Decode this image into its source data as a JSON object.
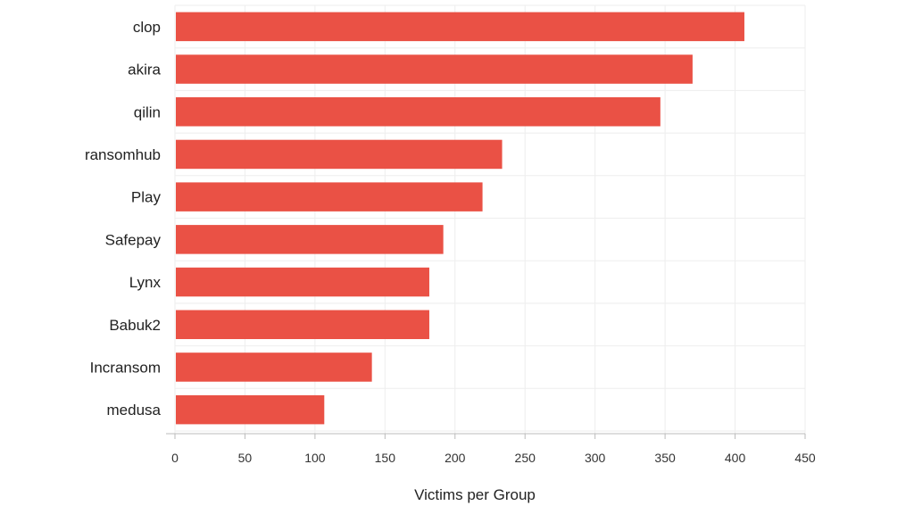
{
  "chart_data": {
    "type": "bar",
    "orientation": "horizontal",
    "categories": [
      "clop",
      "akira",
      "qilin",
      "ransomhub",
      "Play",
      "Safepay",
      "Lynx",
      "Babuk2",
      "Incransom",
      "medusa"
    ],
    "values": [
      406,
      369,
      346,
      233,
      219,
      191,
      181,
      181,
      140,
      106
    ],
    "xlabel": "Victims per Group",
    "ylabel": "",
    "xlim": [
      0,
      450
    ],
    "xticks": [
      0,
      50,
      100,
      150,
      200,
      250,
      300,
      350,
      400,
      450
    ],
    "xtick_labels": [
      "0",
      "50",
      "100",
      "150",
      "200",
      "250",
      "300",
      "350",
      "400",
      "450"
    ],
    "grid": true,
    "colors": {
      "bar": "#ea5145",
      "grid": "#eeeeee",
      "axis": "#bbbbbb"
    }
  }
}
